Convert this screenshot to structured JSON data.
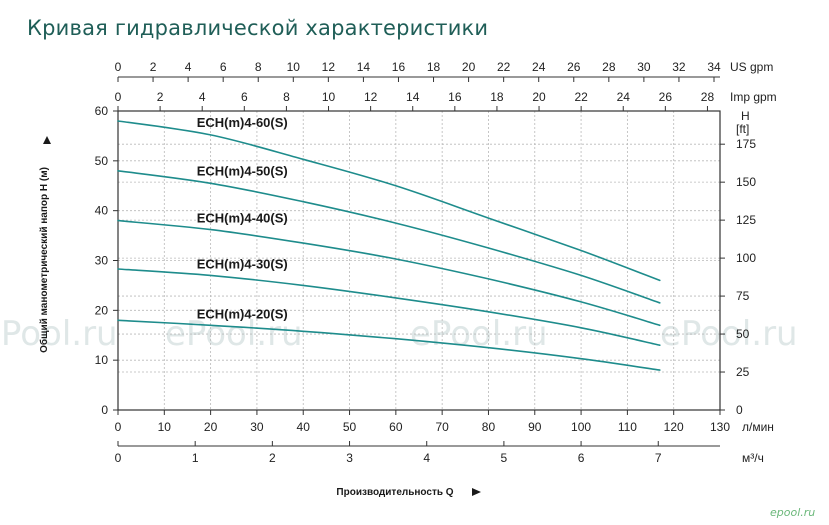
{
  "title": "Кривая гидравлической характеристики",
  "watermarks": [
    "ePool.ru",
    "ePool.ru",
    "ePool.ru",
    "ePool.ru"
  ],
  "logo": "epool.ru",
  "colors": {
    "curve": "#1e8c8c",
    "curve_light": "#9fd6dc",
    "grid": "#b9b9b9",
    "title": "#1f5e57"
  },
  "chart_data": {
    "type": "line",
    "xlabel": "Производительность Q",
    "ylabel": "Общий манометрический напор H (м)",
    "x_unit": "л/мин",
    "xlim": [
      0,
      130
    ],
    "ylim": [
      0,
      60
    ],
    "x_ticks": [
      0,
      10,
      20,
      30,
      40,
      50,
      60,
      70,
      80,
      90,
      100,
      110,
      120,
      130
    ],
    "y_ticks": [
      0,
      10,
      20,
      30,
      40,
      50,
      60
    ],
    "grid": true,
    "secondary_axes": {
      "us_gpm": {
        "label": "US gpm",
        "ticks": [
          0,
          2,
          4,
          6,
          8,
          10,
          12,
          14,
          16,
          18,
          20,
          22,
          24,
          26,
          28,
          30,
          32,
          34
        ]
      },
      "imp_gpm": {
        "label": "Imp gpm",
        "ticks": [
          0,
          2,
          4,
          6,
          8,
          10,
          12,
          14,
          16,
          18,
          20,
          22,
          24,
          26,
          28
        ]
      },
      "m3h": {
        "label": "м³/ч",
        "ticks": [
          0,
          1,
          2,
          3,
          4,
          5,
          6,
          7
        ]
      },
      "ft": {
        "label": "H",
        "sublabel": "[ft]",
        "ticks": [
          0,
          25,
          50,
          75,
          100,
          125,
          150,
          175
        ]
      }
    },
    "series": [
      {
        "name": "ECH(m)4-60(S)",
        "x": [
          0,
          20,
          40,
          60,
          80,
          100,
          117
        ],
        "y": [
          58,
          55.2,
          50.3,
          45,
          38.5,
          32,
          26
        ]
      },
      {
        "name": "ECH(m)4-50(S)",
        "x": [
          0,
          20,
          40,
          60,
          80,
          100,
          117
        ],
        "y": [
          48,
          45.5,
          41.8,
          37.5,
          32.5,
          27,
          21.5
        ]
      },
      {
        "name": "ECH(m)4-40(S)",
        "x": [
          0,
          20,
          40,
          60,
          80,
          100,
          117
        ],
        "y": [
          38,
          36.2,
          33.5,
          30.3,
          26.3,
          21.7,
          17
        ]
      },
      {
        "name": "ECH(m)4-30(S)",
        "x": [
          0,
          20,
          40,
          60,
          80,
          100,
          117
        ],
        "y": [
          28.3,
          27,
          25,
          22.5,
          19.7,
          16.5,
          13
        ]
      },
      {
        "name": "ECH(m)4-20(S)",
        "x": [
          0,
          20,
          40,
          60,
          80,
          100,
          117
        ],
        "y": [
          18,
          17,
          15.8,
          14.3,
          12.5,
          10.3,
          8
        ]
      }
    ]
  }
}
